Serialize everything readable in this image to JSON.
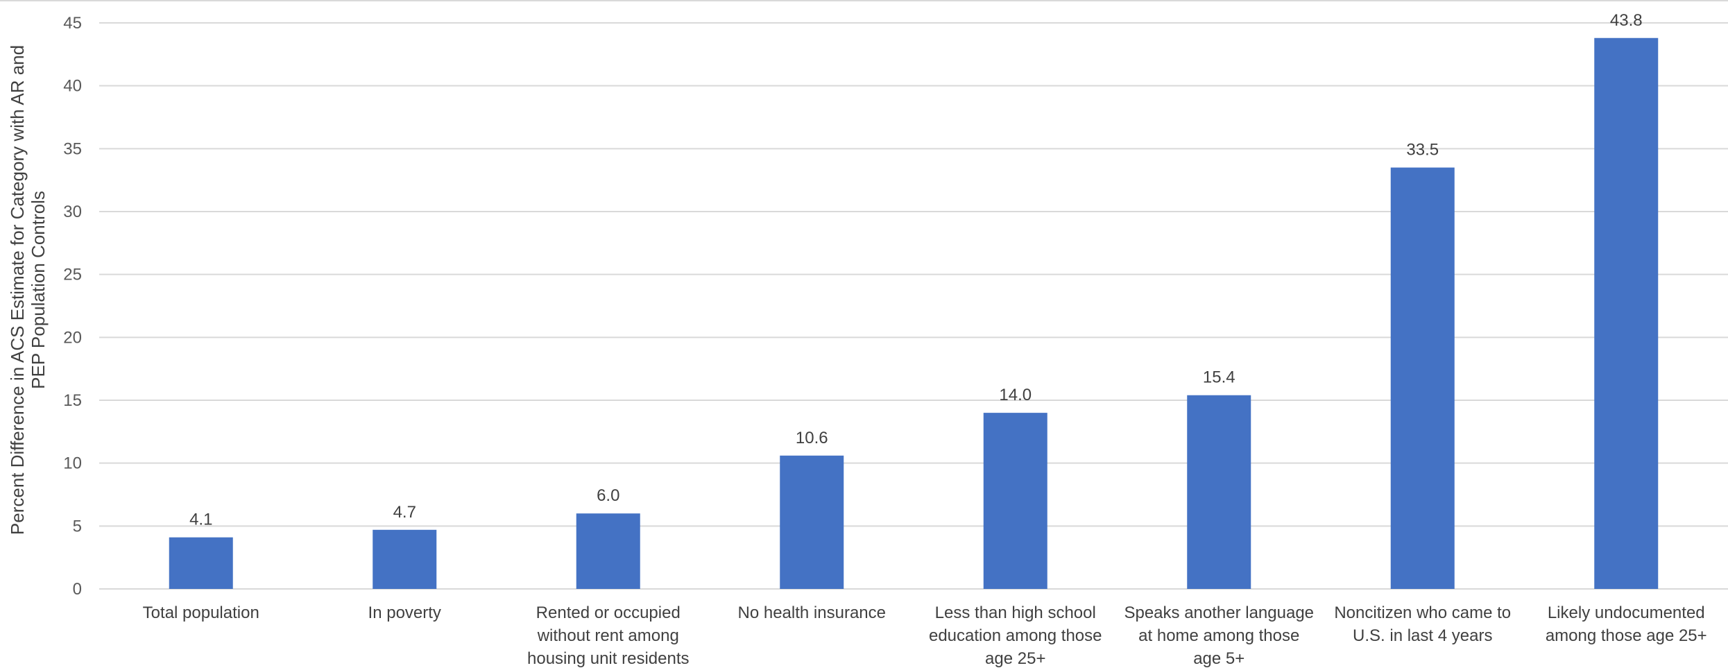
{
  "chart_data": {
    "type": "bar",
    "ylabel_lines": [
      "Percent Difference in ACS Estimate for Category with AR and",
      "PEP Population Controls"
    ],
    "ylim": [
      0,
      45
    ],
    "yticks": [
      0,
      5,
      10,
      15,
      20,
      25,
      30,
      35,
      40,
      45
    ],
    "grid": true,
    "bar_color": "#4472C4",
    "categories": [
      [
        "Total population"
      ],
      [
        "In poverty"
      ],
      [
        "Rented or occupied",
        "without rent among",
        "housing unit residents"
      ],
      [
        "No health insurance"
      ],
      [
        "Less than high school",
        "education among those",
        "age 25+"
      ],
      [
        "Speaks another language",
        "at home among those",
        "age 5+"
      ],
      [
        "Noncitizen who came to",
        "U.S. in last 4 years"
      ],
      [
        "Likely undocumented",
        "among those age 25+"
      ]
    ],
    "values": [
      4.1,
      4.7,
      6.0,
      10.6,
      14.0,
      15.4,
      33.5,
      43.8
    ],
    "value_labels": [
      "4.1",
      "4.7",
      "6.0",
      "10.6",
      "14.0",
      "15.4",
      "33.5",
      "43.8"
    ]
  }
}
